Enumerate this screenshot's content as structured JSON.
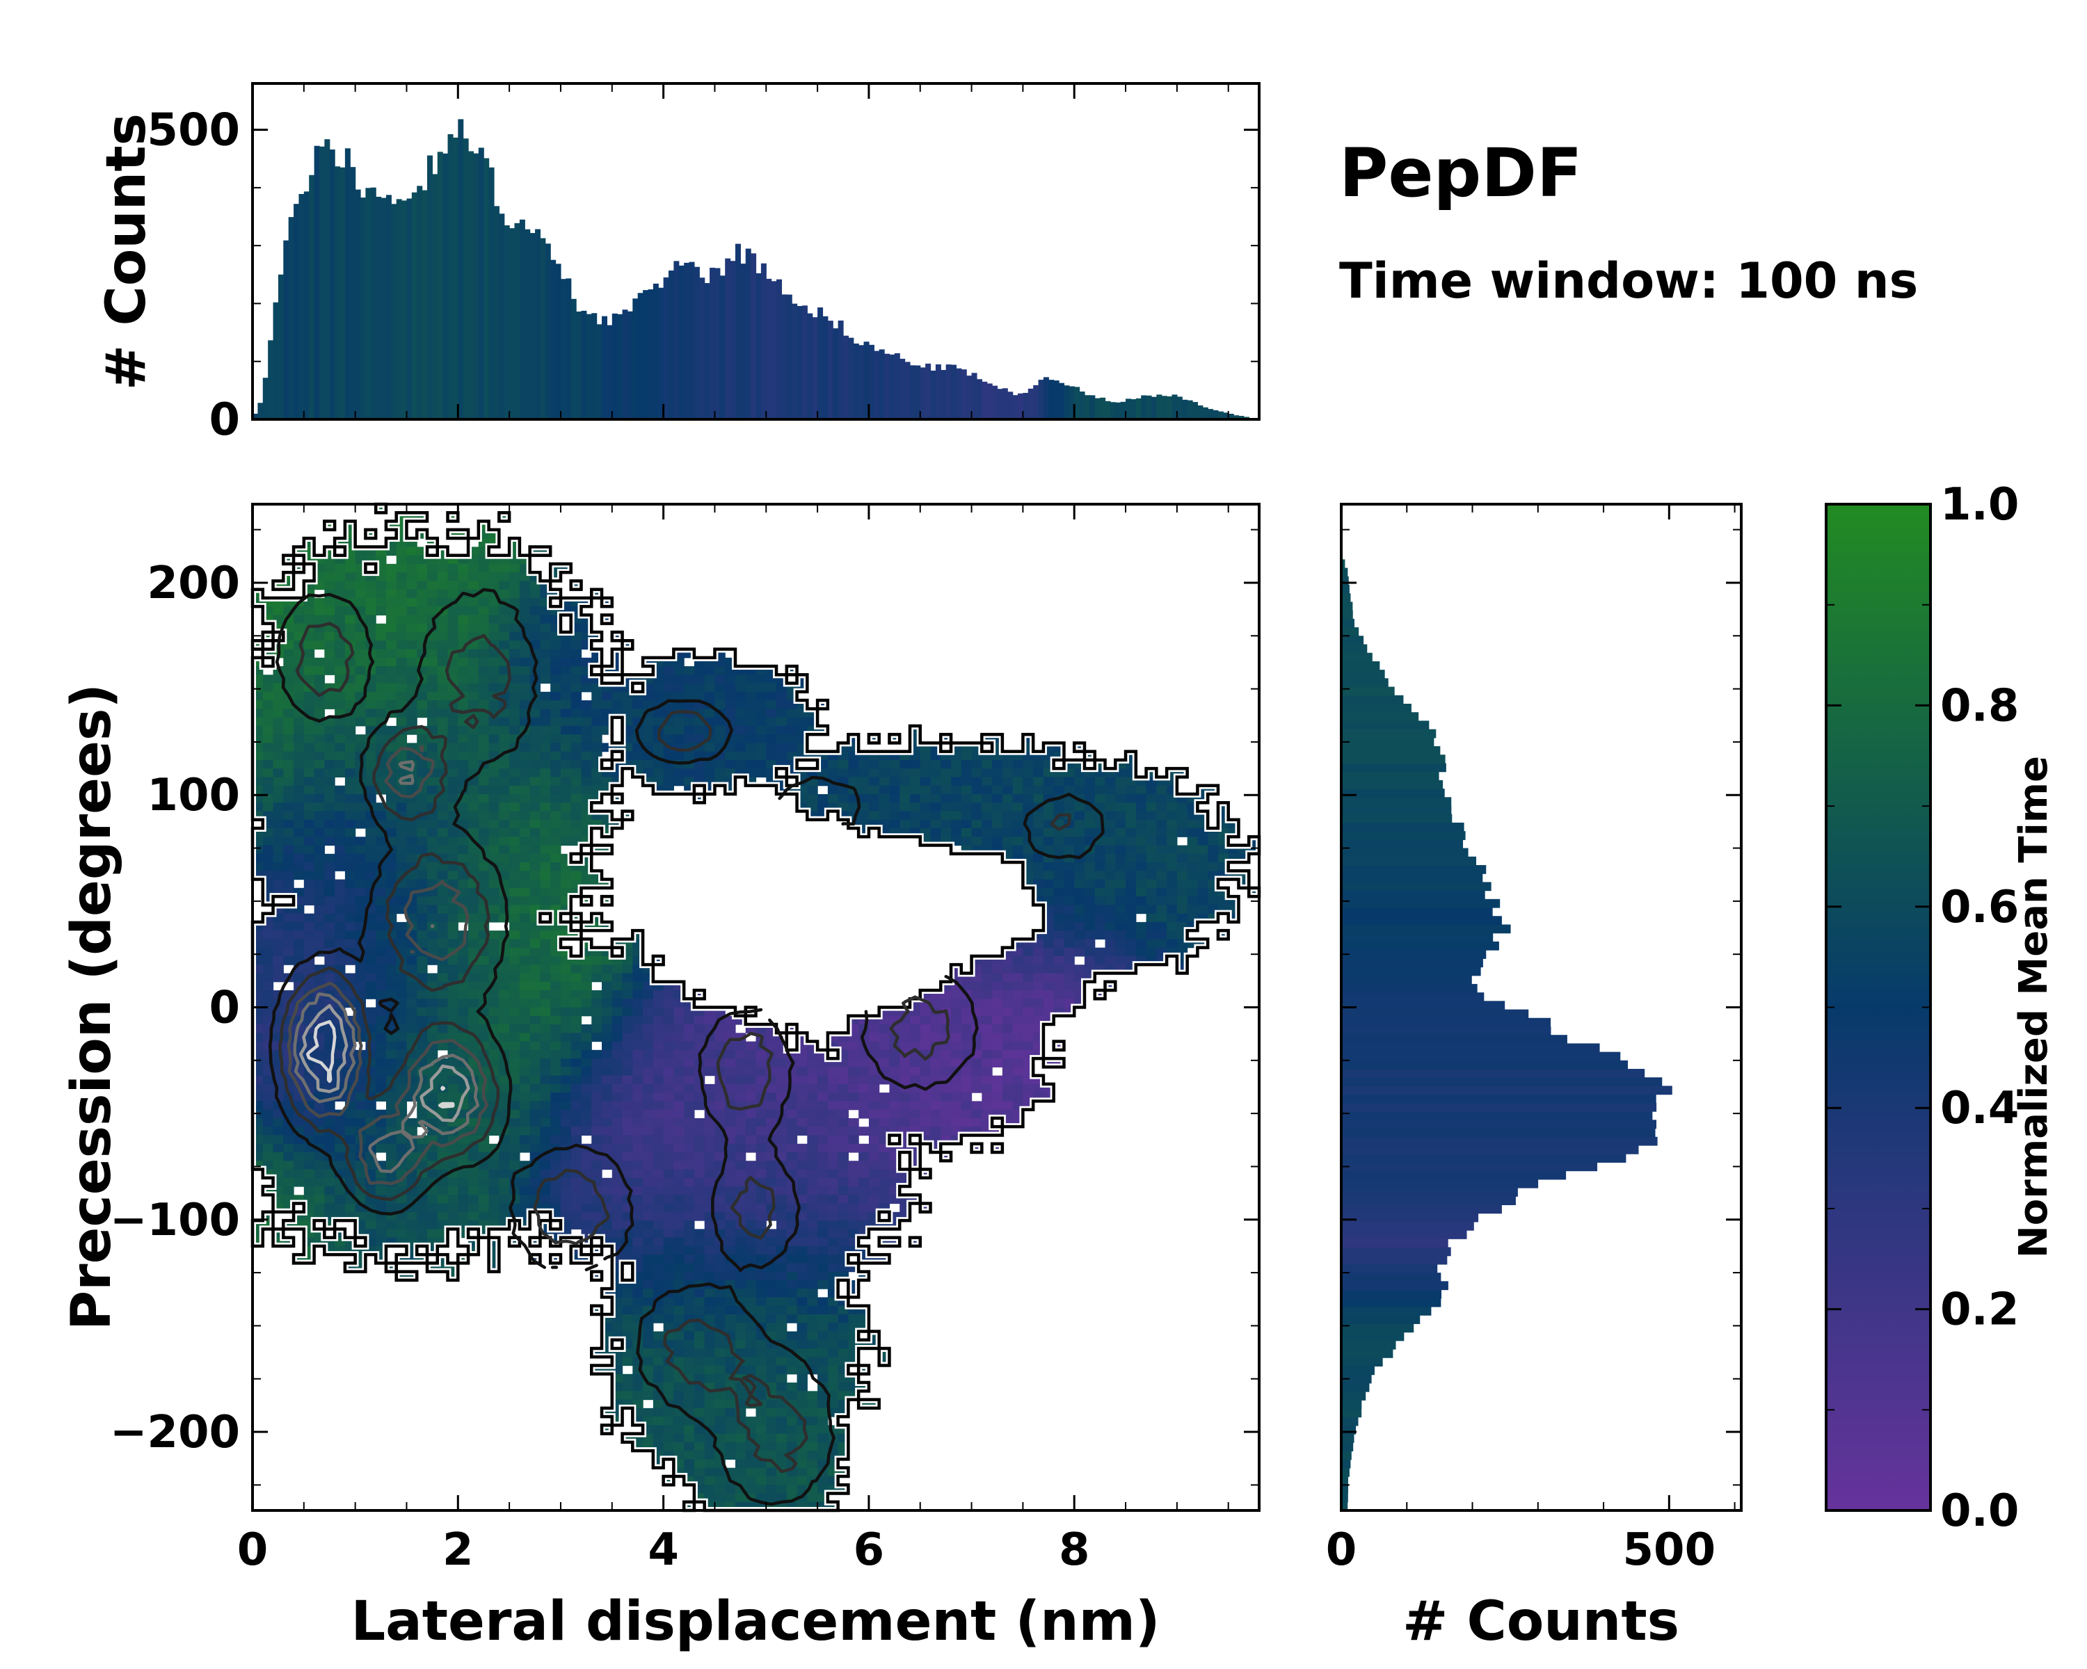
{
  "header": {
    "title": "PepDF",
    "subtitle": "Time window: 100 ns"
  },
  "colors": {
    "low": "#66339c",
    "mid": "#073a6b",
    "high": "#228b22",
    "empty": "#ffffff"
  },
  "chart_data": [
    {
      "id": "top-histogram",
      "type": "bar",
      "ylabel": "# Counts",
      "xlim": [
        0,
        9.8
      ],
      "ylim": [
        0,
        580
      ],
      "yticks": [
        0,
        500
      ],
      "bin_width": 0.05,
      "profile_x": [
        0,
        0.1,
        0.25,
        0.45,
        0.7,
        0.95,
        1.05,
        1.3,
        1.5,
        1.7,
        1.95,
        2.2,
        2.45,
        2.7,
        2.95,
        3.2,
        3.45,
        3.7,
        3.95,
        4.2,
        4.45,
        4.75,
        5.05,
        5.35,
        5.65,
        5.95,
        6.25,
        6.55,
        6.85,
        7.15,
        7.45,
        7.7,
        7.85,
        8.1,
        8.4,
        8.7,
        9.0,
        9.3,
        9.5,
        9.8
      ],
      "profile_y": [
        0,
        40,
        230,
        390,
        480,
        450,
        380,
        400,
        370,
        430,
        500,
        460,
        360,
        330,
        270,
        190,
        170,
        190,
        240,
        270,
        250,
        290,
        250,
        200,
        170,
        130,
        110,
        90,
        90,
        65,
        40,
        70,
        70,
        45,
        30,
        40,
        40,
        20,
        10,
        0
      ],
      "hue_x": [
        0,
        2.0,
        3.0,
        4.0,
        5.0,
        6.0,
        7.0,
        7.5,
        8.0,
        9.8
      ],
      "hue_t": [
        0.55,
        0.6,
        0.55,
        0.45,
        0.38,
        0.4,
        0.35,
        0.3,
        0.6,
        0.62
      ]
    },
    {
      "id": "main-heatmap",
      "type": "heatmap",
      "xlabel": "Lateral displacement (nm)",
      "ylabel": "Precession (degrees)",
      "xlim": [
        0,
        9.8
      ],
      "ylim": [
        -237,
        237
      ],
      "xticks": [
        0,
        2,
        4,
        6,
        8
      ],
      "yticks": [
        -200,
        -100,
        0,
        100,
        200
      ],
      "colorbar_label": "Normalized Mean Time",
      "colorbar_ticks": [
        0.0,
        0.2,
        0.4,
        0.6,
        0.8,
        1.0
      ],
      "colorbar_range": [
        0,
        1
      ],
      "contours": "density contours (black to light grey)",
      "hotspots": [
        {
          "x": 0.7,
          "y": -20,
          "sx": 0.25,
          "sy": 22,
          "w": 1.0
        },
        {
          "x": 1.9,
          "y": -40,
          "sx": 0.3,
          "sy": 18,
          "w": 0.85
        },
        {
          "x": 1.3,
          "y": -70,
          "sx": 0.25,
          "sy": 15,
          "w": 0.6
        },
        {
          "x": 1.5,
          "y": 110,
          "sx": 0.25,
          "sy": 15,
          "w": 0.5
        },
        {
          "x": 1.8,
          "y": 40,
          "sx": 0.4,
          "sy": 25,
          "w": 0.5
        },
        {
          "x": 4.2,
          "y": 130,
          "sx": 0.3,
          "sy": 10,
          "w": 0.35
        },
        {
          "x": 4.8,
          "y": -30,
          "sx": 0.3,
          "sy": 20,
          "w": 0.35
        },
        {
          "x": 4.9,
          "y": -95,
          "sx": 0.3,
          "sy": 18,
          "w": 0.3
        },
        {
          "x": 6.5,
          "y": -10,
          "sx": 0.4,
          "sy": 20,
          "w": 0.3
        },
        {
          "x": 7.9,
          "y": 85,
          "sx": 0.3,
          "sy": 12,
          "w": 0.25
        },
        {
          "x": 5.5,
          "y": 95,
          "sx": 0.4,
          "sy": 12,
          "w": 0.2
        },
        {
          "x": 3.1,
          "y": -95,
          "sx": 0.4,
          "sy": 20,
          "w": 0.35
        },
        {
          "x": 4.3,
          "y": -160,
          "sx": 0.4,
          "sy": 20,
          "w": 0.3
        },
        {
          "x": 5.1,
          "y": -200,
          "sx": 0.4,
          "sy": 25,
          "w": 0.3
        },
        {
          "x": 0.7,
          "y": 165,
          "sx": 0.3,
          "sy": 20,
          "w": 0.35
        },
        {
          "x": 2.2,
          "y": 155,
          "sx": 0.4,
          "sy": 30,
          "w": 0.3
        }
      ],
      "time_regions": [
        {
          "x": 0.5,
          "y": 150,
          "sx": 0.8,
          "sy": 50,
          "t": 0.85
        },
        {
          "x": 2.8,
          "y": 40,
          "sx": 0.6,
          "sy": 40,
          "t": 0.9
        },
        {
          "x": 1.9,
          "y": 50,
          "sx": 0.8,
          "sy": 40,
          "t": 0.62
        },
        {
          "x": 0.8,
          "y": 20,
          "sx": 0.6,
          "sy": 70,
          "t": 0.3
        },
        {
          "x": 1.7,
          "y": -45,
          "sx": 0.6,
          "sy": 40,
          "t": 0.72
        },
        {
          "x": 4.8,
          "y": -50,
          "sx": 1.0,
          "sy": 50,
          "t": 0.18
        },
        {
          "x": 6.8,
          "y": -20,
          "sx": 0.8,
          "sy": 35,
          "t": 0.1
        },
        {
          "x": 4.8,
          "y": -190,
          "sx": 1.0,
          "sy": 60,
          "t": 0.66
        },
        {
          "x": 6.5,
          "y": 90,
          "sx": 1.8,
          "sy": 35,
          "t": 0.57
        },
        {
          "x": 4.3,
          "y": 130,
          "sx": 0.9,
          "sy": 30,
          "t": 0.5
        },
        {
          "x": 0.2,
          "y": -100,
          "sx": 0.5,
          "sy": 25,
          "t": 0.85
        }
      ],
      "support_blobs": [
        {
          "x": 1.7,
          "y": 120,
          "sx": 1.5,
          "sy": 80
        },
        {
          "x": 2.2,
          "y": 170,
          "sx": 0.7,
          "sy": 35
        },
        {
          "x": 1.5,
          "y": -20,
          "sx": 1.6,
          "sy": 75
        },
        {
          "x": 3.5,
          "y": -40,
          "sx": 1.5,
          "sy": 55
        },
        {
          "x": 4.7,
          "y": -70,
          "sx": 1.3,
          "sy": 60
        },
        {
          "x": 6.6,
          "y": -20,
          "sx": 0.9,
          "sy": 35
        },
        {
          "x": 4.7,
          "y": -160,
          "sx": 1.0,
          "sy": 50
        },
        {
          "x": 5.0,
          "y": -210,
          "sx": 0.6,
          "sy": 35
        },
        {
          "x": 6.5,
          "y": 90,
          "sx": 1.8,
          "sy": 28
        },
        {
          "x": 8.3,
          "y": 65,
          "sx": 1.0,
          "sy": 38
        },
        {
          "x": 4.5,
          "y": 130,
          "sx": 0.8,
          "sy": 28
        },
        {
          "x": 7.3,
          "y": 20,
          "sx": 0.8,
          "sy": 20
        }
      ],
      "void_blobs": [
        {
          "x": 5.8,
          "y": 45,
          "sx": 0.8,
          "sy": 30
        },
        {
          "x": 4.9,
          "y": 70,
          "sx": 0.4,
          "sy": 20
        },
        {
          "x": 7.0,
          "y": 45,
          "sx": 0.4,
          "sy": 18
        },
        {
          "x": 4.6,
          "y": 30,
          "sx": 0.3,
          "sy": 15
        }
      ]
    },
    {
      "id": "right-histogram",
      "type": "bar",
      "orientation": "horizontal",
      "xlabel": "# Counts",
      "xlim": [
        0,
        610
      ],
      "ylim": [
        -237,
        237
      ],
      "xticks": [
        0,
        500
      ],
      "bin_width": 4,
      "profile_y": [
        -225,
        -200,
        -170,
        -150,
        -135,
        -120,
        -100,
        -85,
        -70,
        -55,
        -40,
        -25,
        -10,
        0,
        10,
        30,
        50,
        70,
        100,
        120,
        150,
        180,
        205,
        215
      ],
      "profile_x": [
        10,
        20,
        50,
        120,
        160,
        150,
        200,
        300,
        430,
        480,
        520,
        440,
        330,
        250,
        200,
        250,
        240,
        200,
        160,
        160,
        80,
        20,
        10,
        0
      ],
      "hue_y": [
        -237,
        -200,
        -150,
        -110,
        -80,
        -40,
        0,
        30,
        70,
        110,
        150,
        237
      ],
      "hue_t": [
        0.6,
        0.6,
        0.58,
        0.3,
        0.42,
        0.42,
        0.45,
        0.5,
        0.55,
        0.6,
        0.62,
        0.62
      ]
    }
  ]
}
